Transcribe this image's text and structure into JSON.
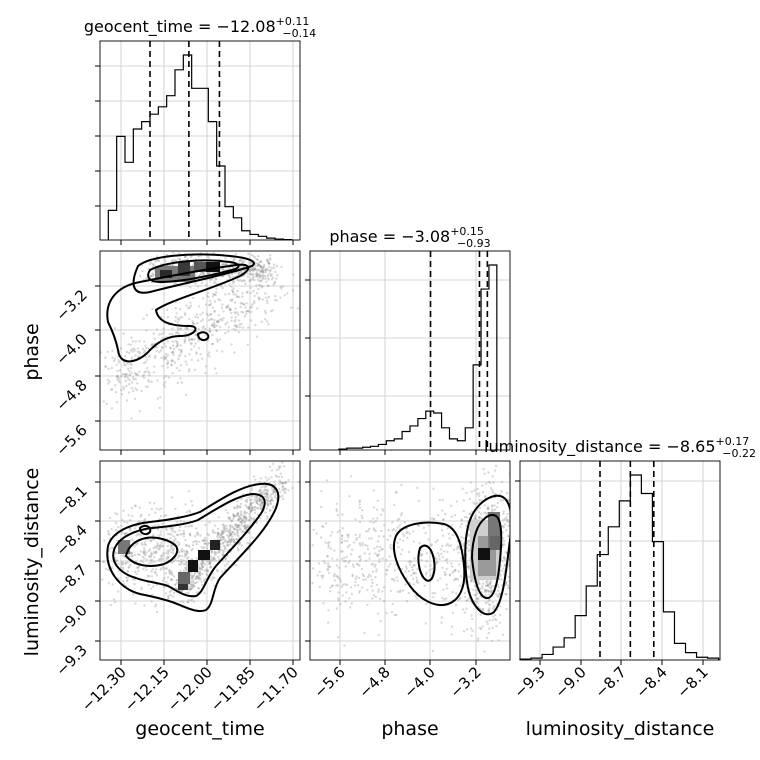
{
  "chart_data": {
    "type": "corner",
    "parameters": [
      {
        "name": "geocent_time",
        "median": "−12.08",
        "plus": "+0.11",
        "minus": "−0.14",
        "xlim": [
          -12.4,
          -11.68
        ],
        "ticks": [
          -12.3,
          -12.15,
          -12.0,
          -11.85,
          -11.7
        ],
        "tick_labels": [
          "−12.30",
          "−12.15",
          "−12.00",
          "−11.85",
          "−11.70"
        ],
        "quantiles": [
          -12.22,
          -12.08,
          -11.97
        ]
      },
      {
        "name": "phase",
        "median": "−3.08",
        "plus": "+0.15",
        "minus": "−0.93",
        "xlim": [
          -6.3,
          -2.5
        ],
        "ticks": [
          -5.6,
          -4.8,
          -4.0,
          -3.2
        ],
        "tick_labels": [
          "−5.6",
          "−4.8",
          "−4.0",
          "−3.2"
        ],
        "quantiles": [
          -4.01,
          -3.08,
          -2.93
        ]
      },
      {
        "name": "luminosity_distance",
        "median": "−8.65",
        "plus": "+0.17",
        "minus": "−0.22",
        "xlim": [
          -9.45,
          -8.0
        ],
        "ticks": [
          -9.3,
          -9.0,
          -8.7,
          -8.4,
          -8.1
        ],
        "tick_labels": [
          "−9.3",
          "−9.0",
          "−8.7",
          "−8.4",
          "−8.1"
        ],
        "quantiles": [
          -8.87,
          -8.65,
          -8.48
        ]
      }
    ],
    "histograms": {
      "geocent_time": {
        "edges": [
          -12.37,
          -12.34,
          -12.31,
          -12.28,
          -12.25,
          -12.22,
          -12.19,
          -12.16,
          -12.13,
          -12.1,
          -12.07,
          -12.04,
          -12.01,
          -11.98,
          -11.95,
          -11.92,
          -11.89,
          -11.86,
          -11.83,
          -11.8,
          -11.77,
          -11.74,
          -11.71
        ],
        "counts": [
          0.16,
          0.56,
          0.42,
          0.6,
          0.64,
          0.68,
          0.72,
          0.78,
          0.92,
          1.0,
          0.82,
          0.82,
          0.64,
          0.4,
          0.18,
          0.12,
          0.05,
          0.03,
          0.02,
          0.01,
          0.005,
          0.002
        ]
      },
      "phase": {
        "edges": [
          -5.75,
          -5.6,
          -5.45,
          -5.3,
          -5.15,
          -5.0,
          -4.85,
          -4.7,
          -4.55,
          -4.4,
          -4.25,
          -4.1,
          -3.95,
          -3.8,
          -3.65,
          -3.5,
          -3.35,
          -3.2,
          -3.05,
          -2.9,
          -2.75
        ],
        "counts": [
          0.005,
          0.01,
          0.01,
          0.015,
          0.02,
          0.03,
          0.05,
          0.06,
          0.1,
          0.13,
          0.17,
          0.21,
          0.2,
          0.12,
          0.06,
          0.05,
          0.12,
          0.46,
          0.87,
          1.0
        ]
      },
      "luminosity_distance": {
        "edges": [
          -9.45,
          -9.37,
          -9.29,
          -9.21,
          -9.13,
          -9.05,
          -8.97,
          -8.89,
          -8.81,
          -8.73,
          -8.65,
          -8.57,
          -8.49,
          -8.41,
          -8.33,
          -8.25,
          -8.17,
          -8.09,
          -8.01
        ],
        "counts": [
          0.005,
          0.01,
          0.03,
          0.07,
          0.12,
          0.24,
          0.4,
          0.57,
          0.72,
          0.86,
          1.0,
          0.9,
          0.64,
          0.26,
          0.09,
          0.04,
          0.015,
          0.01
        ]
      }
    },
    "ylabels": [
      "phase",
      "luminosity_distance"
    ],
    "xlabels": [
      "geocent_time",
      "phase",
      "luminosity_distance"
    ]
  }
}
